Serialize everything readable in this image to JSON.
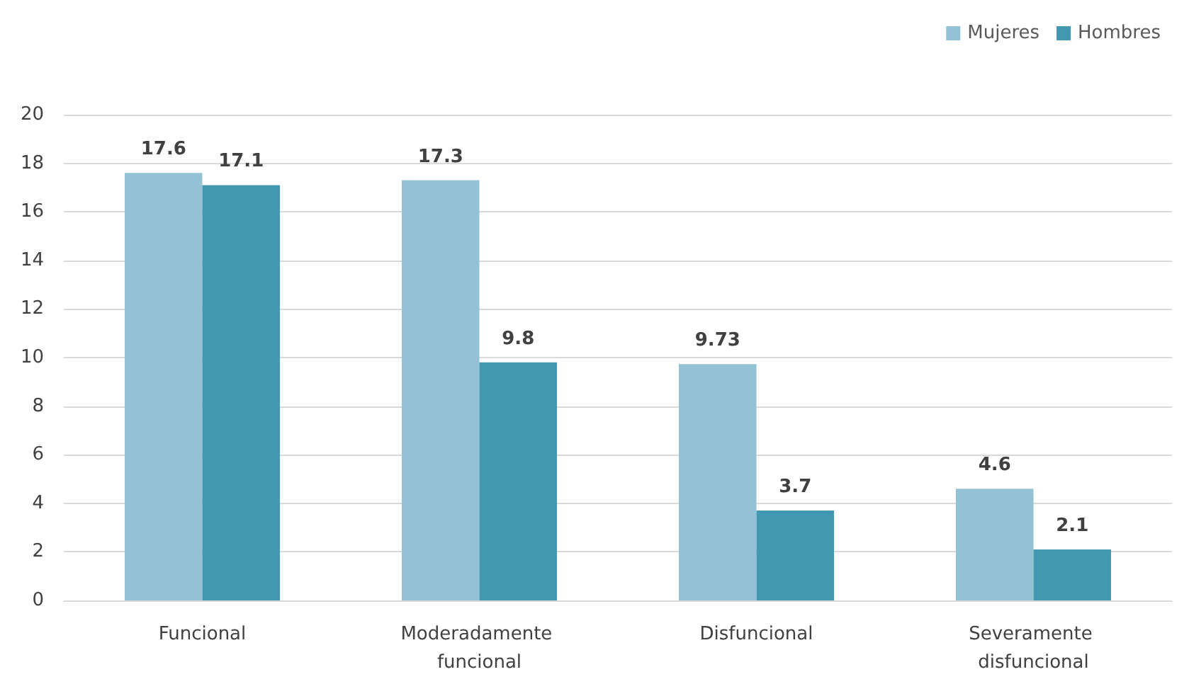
{
  "chart_data": {
    "type": "bar",
    "categories": [
      "Funcional",
      "Moderadamente funcional",
      "Disfuncional",
      "Severamente disfuncional"
    ],
    "series": [
      {
        "name": "Mujeres",
        "color": "#92c2d4",
        "values": [
          17.6,
          17.3,
          9.73,
          4.6
        ]
      },
      {
        "name": "Hombres",
        "color": "#4298b0",
        "values": [
          17.1,
          9.8,
          3.7,
          2.1
        ]
      }
    ],
    "ylim": [
      0,
      20
    ],
    "yticks": [
      0,
      2,
      4,
      6,
      8,
      10,
      12,
      14,
      16,
      18,
      20
    ],
    "grid": "y",
    "legend": "top right",
    "data_labels": true
  }
}
